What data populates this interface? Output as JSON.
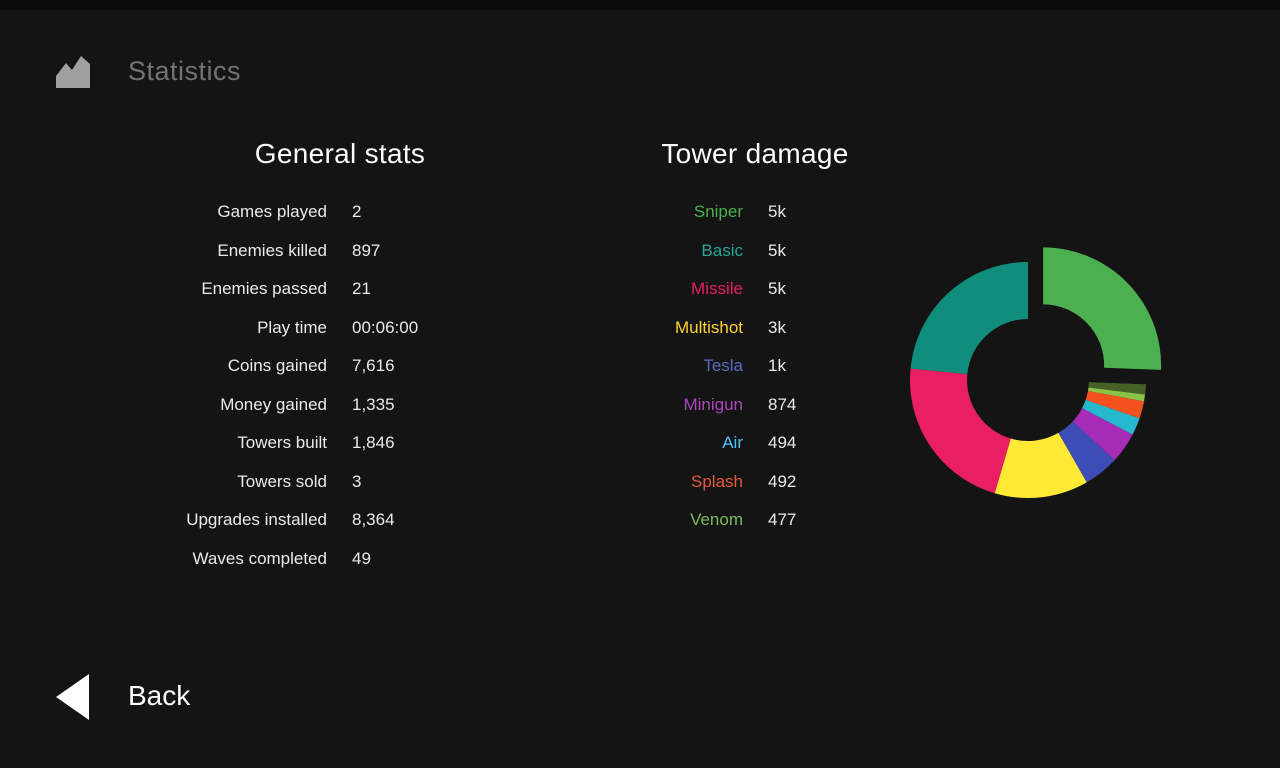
{
  "header": {
    "title": "Statistics"
  },
  "general_stats": {
    "heading": "General stats",
    "rows": [
      {
        "label": "Games played",
        "value": "2"
      },
      {
        "label": "Enemies killed",
        "value": "897"
      },
      {
        "label": "Enemies passed",
        "value": "21"
      },
      {
        "label": "Play time",
        "value": "00:06:00"
      },
      {
        "label": "Coins gained",
        "value": "7,616"
      },
      {
        "label": "Money gained",
        "value": "1,335"
      },
      {
        "label": "Towers built",
        "value": "1,846"
      },
      {
        "label": "Towers sold",
        "value": "3"
      },
      {
        "label": "Upgrades installed",
        "value": "8,364"
      },
      {
        "label": "Waves completed",
        "value": "49"
      }
    ]
  },
  "tower_damage": {
    "heading": "Tower damage",
    "rows": [
      {
        "label": "Sniper",
        "value": "5k",
        "color": "#4CAF50"
      },
      {
        "label": "Basic",
        "value": "5k",
        "color": "#26A69A"
      },
      {
        "label": "Missile",
        "value": "5k",
        "color": "#E91E63"
      },
      {
        "label": "Multishot",
        "value": "3k",
        "color": "#FFD234"
      },
      {
        "label": "Tesla",
        "value": "1k",
        "color": "#5C6BC0"
      },
      {
        "label": "Minigun",
        "value": "874",
        "color": "#AB47BC"
      },
      {
        "label": "Air",
        "value": "494",
        "color": "#4FC3F7"
      },
      {
        "label": "Splash",
        "value": "492",
        "color": "#E2593B"
      },
      {
        "label": "Venom",
        "value": "477",
        "color": "#7CB95C"
      }
    ]
  },
  "chart_data": {
    "type": "pie",
    "title": "Tower damage",
    "style": "donut, exploded first slice, no axis, legend at left",
    "donut_hole_ratio": 0.52,
    "slices_clockwise_from_top": [
      {
        "name": "Sniper",
        "value": 5300,
        "display": "5k",
        "color": "#4CAF50",
        "exploded": true
      },
      {
        "name": "Venom",
        "value": 477,
        "display": "477",
        "color": "#8BC34A"
      },
      {
        "name": "Splash",
        "value": 492,
        "display": "492",
        "color": "#F4511E"
      },
      {
        "name": "Air",
        "value": 494,
        "display": "494",
        "color": "#26B8CE"
      },
      {
        "name": "Minigun",
        "value": 874,
        "display": "874",
        "color": "#A62BB5"
      },
      {
        "name": "Tesla",
        "value": 1000,
        "display": "1k",
        "color": "#3D4DB5"
      },
      {
        "name": "Multishot",
        "value": 2660,
        "display": "3k",
        "color": "#FFE935"
      },
      {
        "name": "Missile",
        "value": 4550,
        "display": "5k",
        "color": "#E91E63"
      },
      {
        "name": "Basic",
        "value": 4860,
        "display": "5k",
        "color": "#108D7D"
      }
    ]
  },
  "back": {
    "label": "Back"
  },
  "theme": {
    "background": "#141414",
    "top_bar": "#0b0b0b",
    "heading_text": "#fbfbfb",
    "body_text": "#eaeaea",
    "muted_text": "#737373",
    "icon_gray": "#a0a0a0"
  }
}
